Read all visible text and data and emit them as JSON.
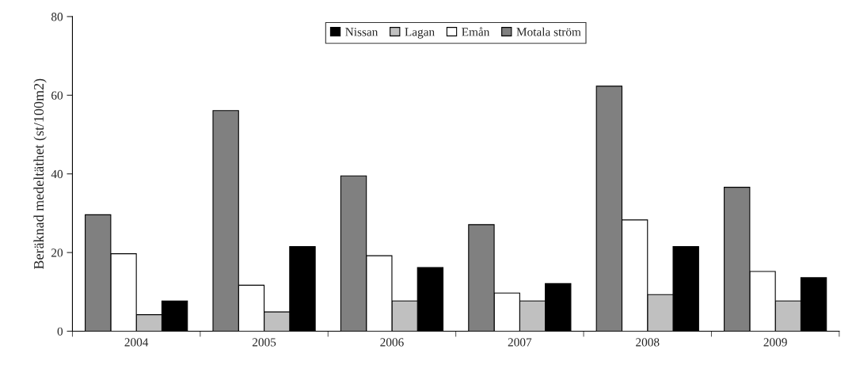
{
  "chart_data": {
    "type": "bar",
    "ylabel": "Beräknad medeltäthet (st/100m2)",
    "categories": [
      "2004",
      "2005",
      "2006",
      "2007",
      "2008",
      "2009"
    ],
    "series": [
      {
        "name": "Nissan",
        "color": "#000000",
        "values": [
          7.7,
          21.5,
          16.2,
          12.1,
          21.5,
          13.6
        ]
      },
      {
        "name": "Lagan",
        "color": "#c0c0c0",
        "values": [
          4.2,
          4.9,
          7.7,
          7.7,
          9.3,
          7.7
        ]
      },
      {
        "name": "Emån",
        "color": "#ffffff",
        "values": [
          19.7,
          11.7,
          19.2,
          9.7,
          28.3,
          15.2
        ]
      },
      {
        "name": "Motala ström",
        "color": "#808080",
        "values": [
          29.6,
          56.1,
          39.5,
          27.1,
          62.3,
          36.6
        ]
      }
    ],
    "ylim": [
      0,
      80
    ],
    "yticks": [
      0,
      20,
      40,
      60,
      80
    ],
    "grid": false,
    "legend": "top"
  }
}
